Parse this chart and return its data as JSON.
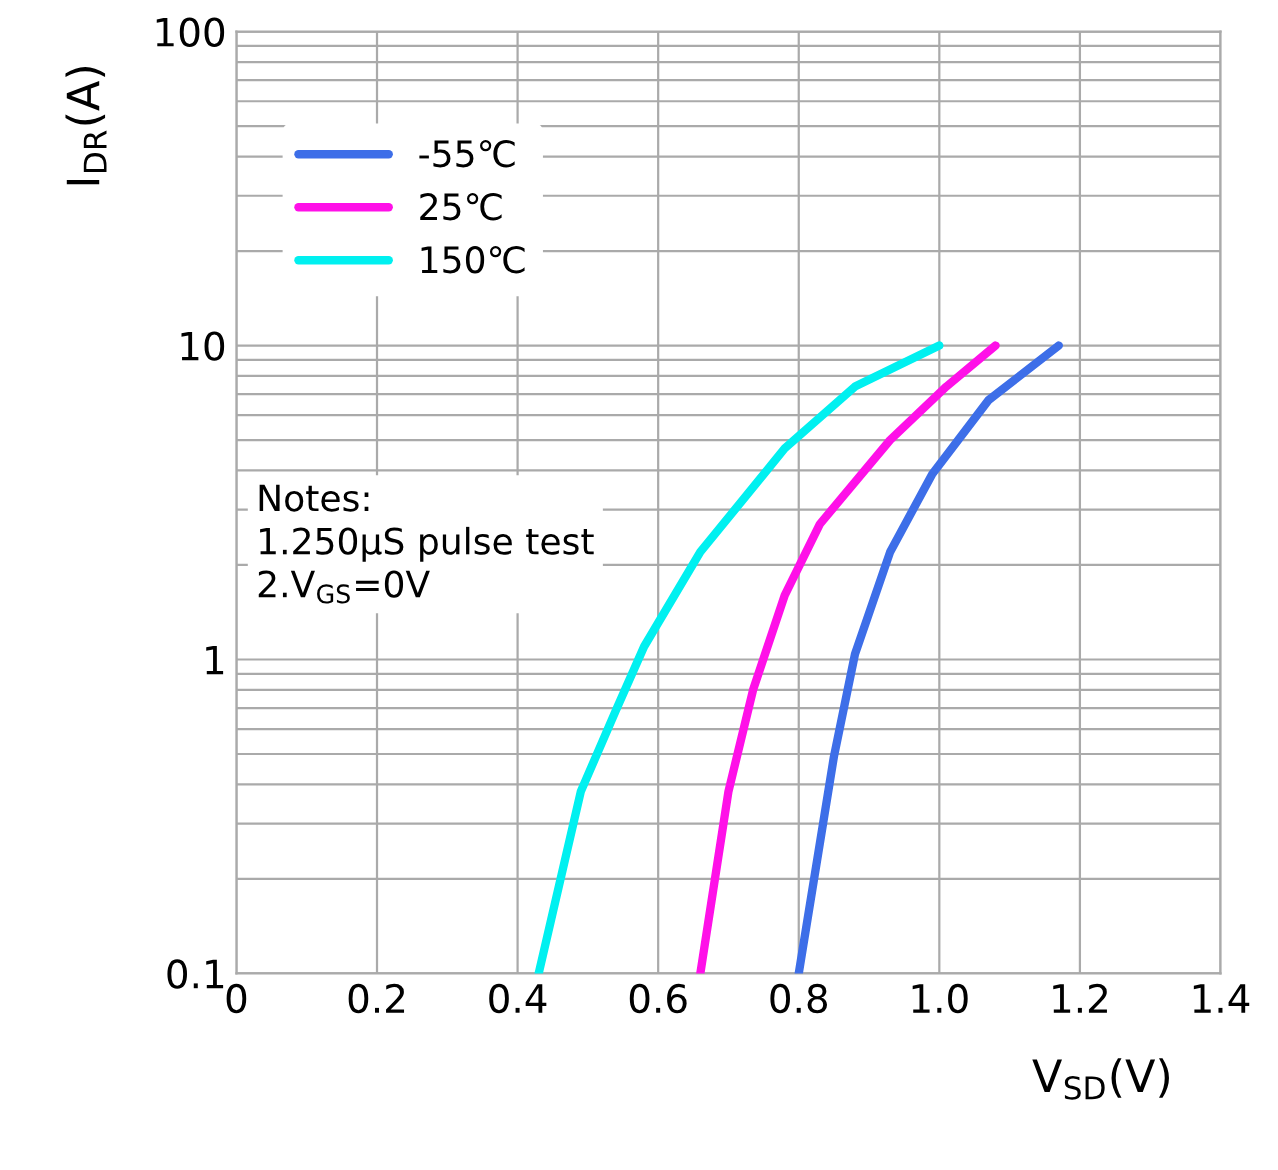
{
  "chart_data": {
    "type": "line",
    "xlabel": "V$_{SD}$(V)",
    "ylabel": "I$_{DR}$(A)",
    "annotations": [
      "Notes:\n1.250μS pulse test\n2.V$_{GS}$=0V"
    ],
    "series": [
      {
        "name": "-55℃",
        "color": "#3d6ee8",
        "x": [
          0.8,
          0.85,
          0.88,
          0.93,
          0.99,
          1.07,
          1.17
        ],
        "values": [
          0.1,
          0.49,
          1.04,
          2.2,
          3.9,
          6.7,
          10
        ]
      },
      {
        "name": "25℃",
        "color": "#ff10e8",
        "x": [
          0.66,
          0.7,
          0.735,
          0.78,
          0.83,
          0.93,
          1.01,
          1.08
        ],
        "values": [
          0.1,
          0.38,
          0.8,
          1.6,
          2.7,
          5.0,
          7.4,
          10
        ]
      },
      {
        "name": "150℃",
        "color": "#00f0f0",
        "x": [
          0.43,
          0.49,
          0.54,
          0.58,
          0.66,
          0.78,
          0.88,
          1.0
        ],
        "values": [
          0.1,
          0.38,
          0.69,
          1.1,
          2.2,
          4.7,
          7.4,
          10
        ]
      }
    ],
    "xlim": [
      0,
      1.4
    ],
    "xticks": [
      0,
      0.2,
      0.4,
      0.6,
      0.8,
      {
        "value": 1,
        "label": "1.0"
      },
      1.2,
      1.4
    ],
    "ylim": [
      0.1,
      100
    ],
    "yticks": [
      0.1,
      1,
      10,
      100
    ],
    "log": "y",
    "grid": true,
    "legend": "top left",
    "marker": "none",
    "line_style": "solid"
  }
}
